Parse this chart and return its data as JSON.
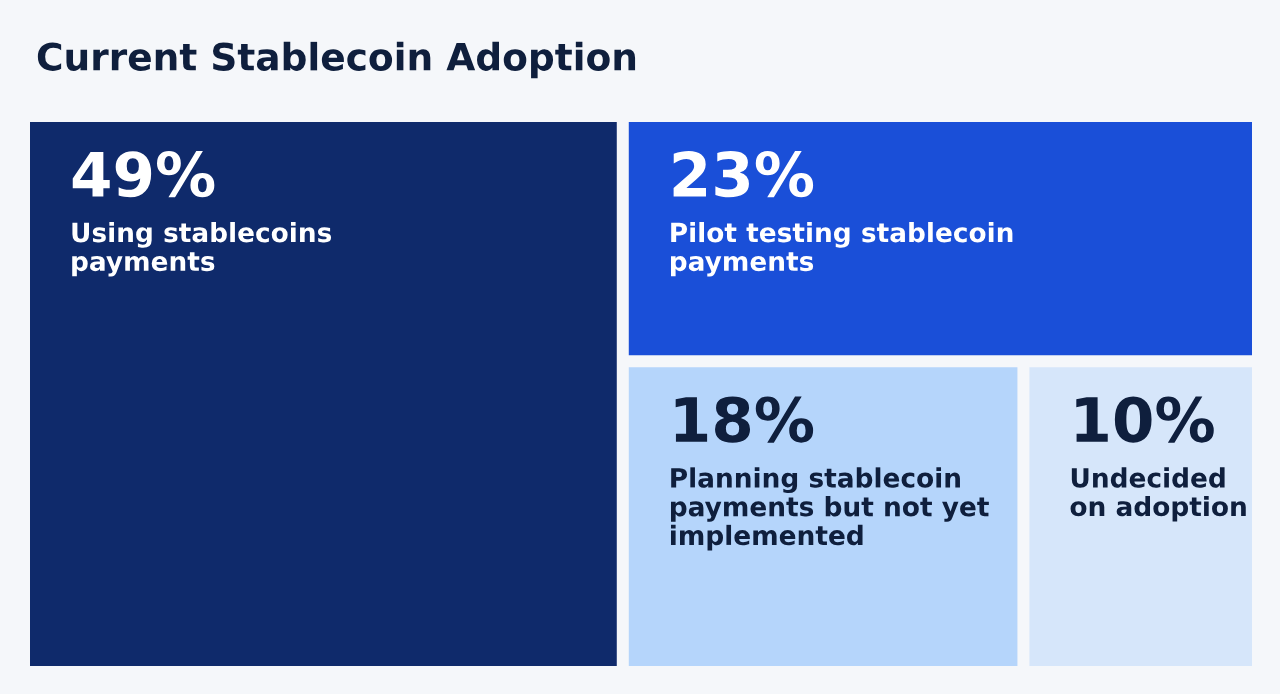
{
  "chart_data": {
    "type": "other",
    "title": "Current Stablecoin Adoption",
    "categories": [
      "Using stablecoins\npayments",
      "Pilot testing stablecoin\npayments",
      "Planning stablecoin\npayments but not yet\nimplemented",
      "Undecided\non adoption"
    ],
    "values": [
      49,
      23,
      18,
      10
    ],
    "value_labels": [
      "49%",
      "23%",
      "18%",
      "10%"
    ],
    "colors": [
      "#0f2a6b",
      "#1a4fd8",
      "#b5d5fb",
      "#d6e6fa"
    ]
  }
}
